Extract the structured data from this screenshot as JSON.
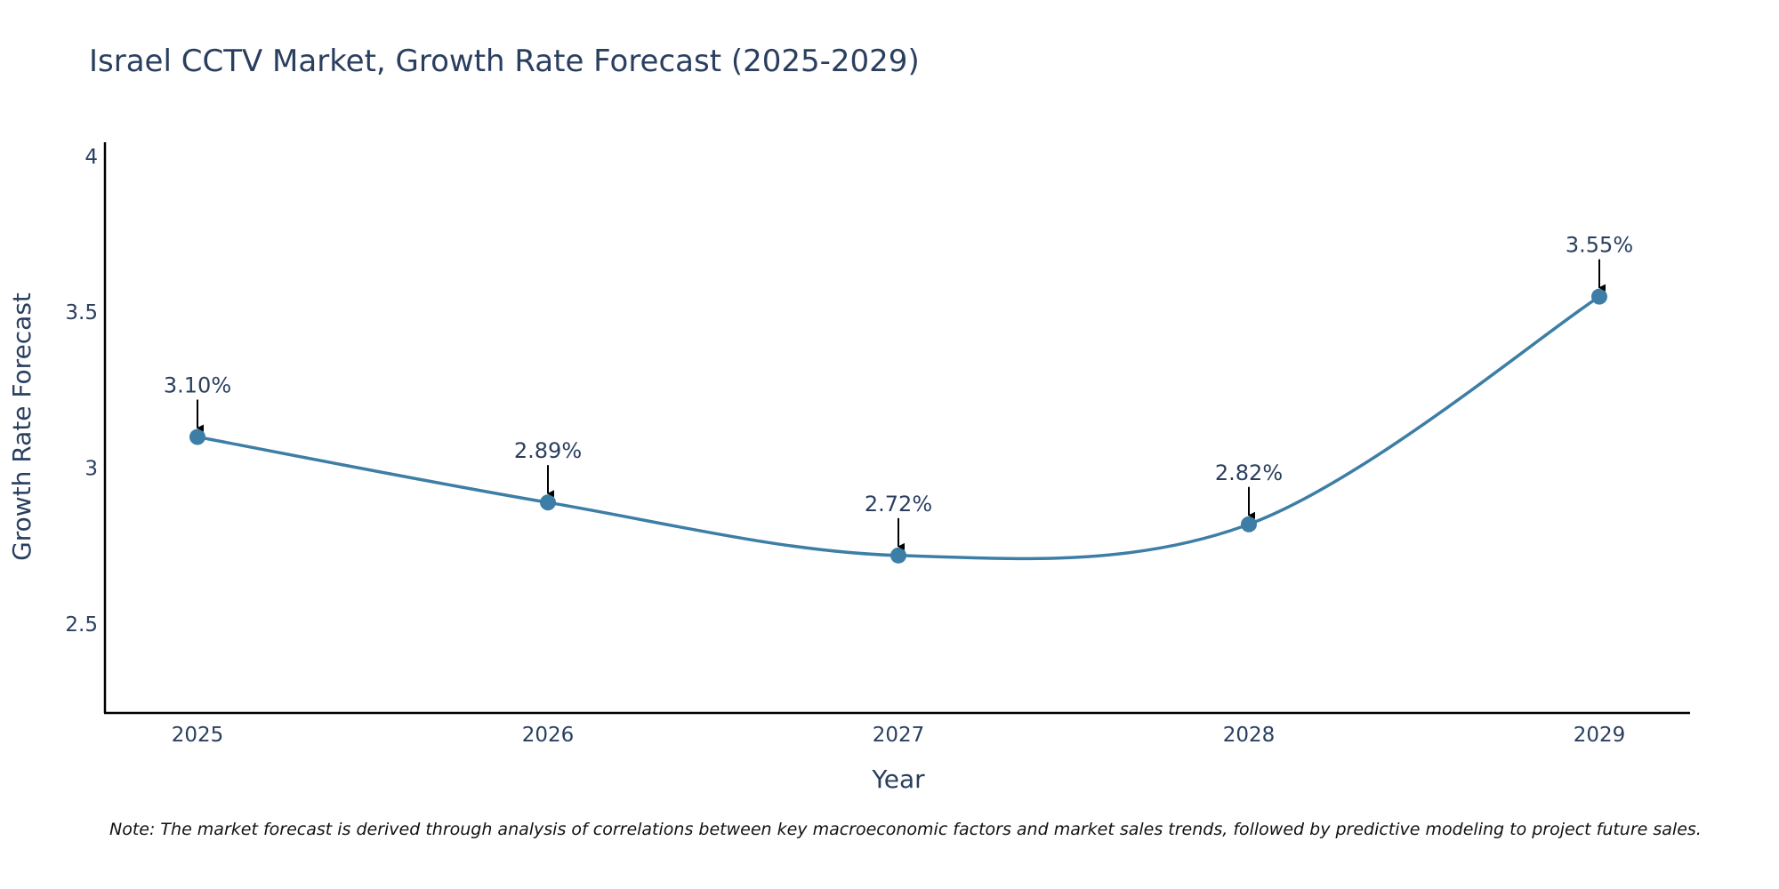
{
  "chart_data": {
    "type": "line",
    "title": "Israel CCTV Market, Growth Rate Forecast (2025-2029)",
    "xlabel": "Year",
    "ylabel": "Growth Rate Forecast",
    "categories": [
      "2025",
      "2026",
      "2027",
      "2028",
      "2029"
    ],
    "values": [
      3.1,
      2.89,
      2.72,
      2.82,
      3.55
    ],
    "data_labels": [
      "3.10%",
      "2.89%",
      "2.72%",
      "2.82%",
      "3.55%"
    ],
    "yticks": [
      2.5,
      3,
      3.5,
      4
    ],
    "ytick_labels": [
      "2.5",
      "3",
      "3.5",
      "4"
    ],
    "ylim": [
      2.215,
      4.045
    ],
    "grid": false,
    "line_shape": "spline",
    "line_color": "#3d7ea6",
    "marker_color": "#3d7ea6",
    "note": "Note: The market forecast is derived through analysis of correlations between key macroeconomic factors and market sales trends, followed by predictive modeling to project future sales."
  }
}
